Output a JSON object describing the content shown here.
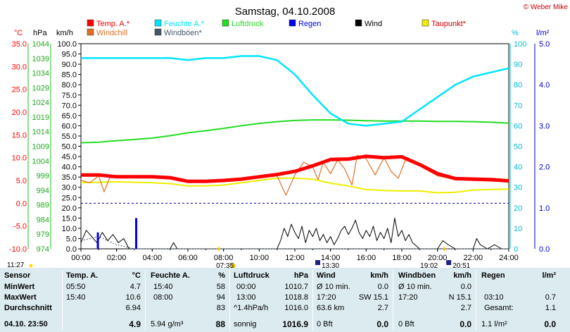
{
  "title": "Samstag, 04.10.2008",
  "copyright": "© Weber Mike",
  "units": {
    "temp": "°C",
    "pressure": "hPa",
    "wind": "km/h",
    "humidity": "%",
    "rain": "l/m²"
  },
  "colors": {
    "temp": "#ff0000",
    "humidity": "#00e5ff",
    "pressure": "#22dd22",
    "rain": "#0000ee",
    "wind": "#000000",
    "dewpoint": "#eeee00",
    "windchill": "#e07020",
    "gusts": "#445566"
  },
  "legend": [
    {
      "label": "Temp. A.*",
      "color": "#ff0000"
    },
    {
      "label": "Feuchte A.*",
      "color": "#00e5ff"
    },
    {
      "label": "Luftdruck",
      "color": "#22dd22"
    },
    {
      "label": "Regen",
      "color": "#0000ee"
    },
    {
      "label": "Wind",
      "color": "#000000"
    },
    {
      "label": "Taupunkt*",
      "color": "#eeee00"
    },
    {
      "label": "Windchill",
      "color": "#e07020"
    },
    {
      "label": "Windböen*",
      "color": "#445566"
    }
  ],
  "sun": {
    "sunrise": "07:35",
    "sunset": "19:02",
    "moonrise": "11:27",
    "moonset_a": "13:30",
    "moonset_b": "20:51"
  },
  "chart_data": {
    "type": "line",
    "x_ticks": [
      "00:00",
      "02:00",
      "04:00",
      "06:00",
      "08:00",
      "10:00",
      "12:00",
      "14:00",
      "16:00",
      "18:00",
      "20:00",
      "22:00",
      "24:00"
    ],
    "axes": {
      "temp_ticks": [
        "35.0",
        "30.0",
        "25.0",
        "20.0",
        "15.0",
        "10.0",
        "5.0",
        "0.0",
        "-5.0",
        "-10.0"
      ],
      "pressure_ticks": [
        "1044",
        "1039",
        "1034",
        "1029",
        "1024",
        "1019",
        "1014",
        "1009",
        "1004",
        "999",
        "994",
        "989",
        "984",
        "979",
        "974"
      ],
      "wind_ticks": [
        "100.0",
        "95.0",
        "90.0",
        "85.0",
        "80.0",
        "75.0",
        "70.0",
        "65.0",
        "60.0",
        "55.0",
        "50.0",
        "45.0",
        "40.0",
        "35.0",
        "30.0",
        "25.0",
        "20.0",
        "15.0",
        "10.0",
        "5.0",
        "0.0"
      ],
      "humidity_ticks": [
        "100",
        "90",
        "80",
        "70",
        "60",
        "50",
        "40",
        "30",
        "20",
        "10",
        "0"
      ],
      "rain_ticks": [
        "5.0",
        "4.0",
        "3.0",
        "2.0",
        "1.0",
        "0.0"
      ],
      "temp_range": [
        -10,
        35
      ],
      "humidity_range": [
        0,
        100
      ],
      "rain_range": [
        0,
        5
      ]
    },
    "series": [
      {
        "name": "Temp. A.*",
        "axis": "temp",
        "points": [
          [
            0,
            6.2
          ],
          [
            1,
            6.2
          ],
          [
            2,
            5.8
          ],
          [
            3,
            5.8
          ],
          [
            4,
            5.8
          ],
          [
            5,
            5.6
          ],
          [
            6,
            4.8
          ],
          [
            7,
            4.8
          ],
          [
            8,
            5.0
          ],
          [
            9,
            5.3
          ],
          [
            10,
            5.8
          ],
          [
            11,
            6.3
          ],
          [
            12,
            7.0
          ],
          [
            13,
            8.2
          ],
          [
            14,
            9.6
          ],
          [
            15,
            9.7
          ],
          [
            16,
            10.3
          ],
          [
            17,
            10.0
          ],
          [
            18,
            10.2
          ],
          [
            19,
            8.5
          ],
          [
            20,
            6.5
          ],
          [
            21,
            5.4
          ],
          [
            22,
            5.3
          ],
          [
            23,
            5.2
          ],
          [
            24,
            4.9
          ]
        ]
      },
      {
        "name": "Feuchte A.*",
        "axis": "humidity",
        "points": [
          [
            0,
            93
          ],
          [
            1,
            93
          ],
          [
            2,
            93
          ],
          [
            3,
            93
          ],
          [
            4,
            93
          ],
          [
            5,
            93
          ],
          [
            6,
            92
          ],
          [
            7,
            93
          ],
          [
            8,
            93
          ],
          [
            9,
            94
          ],
          [
            10,
            94
          ],
          [
            11,
            92
          ],
          [
            12,
            85
          ],
          [
            13,
            75
          ],
          [
            14,
            66
          ],
          [
            15,
            61
          ],
          [
            16,
            60
          ],
          [
            17,
            61
          ],
          [
            18,
            62
          ],
          [
            19,
            68
          ],
          [
            20,
            74
          ],
          [
            21,
            80
          ],
          [
            22,
            84
          ],
          [
            23,
            86
          ],
          [
            24,
            88
          ]
        ]
      },
      {
        "name": "Luftdruck",
        "axis": "pressure",
        "points": [
          [
            0,
            1010.2
          ],
          [
            1,
            1010.4
          ],
          [
            2,
            1010.9
          ],
          [
            3,
            1011.3
          ],
          [
            4,
            1011.8
          ],
          [
            5,
            1012.6
          ],
          [
            6,
            1013.6
          ],
          [
            7,
            1014.3
          ],
          [
            8,
            1015.1
          ],
          [
            9,
            1016.0
          ],
          [
            10,
            1016.8
          ],
          [
            11,
            1017.4
          ],
          [
            12,
            1017.8
          ],
          [
            13,
            1018.0
          ],
          [
            14,
            1018.0
          ],
          [
            15,
            1017.9
          ],
          [
            16,
            1017.7
          ],
          [
            17,
            1017.6
          ],
          [
            18,
            1017.6
          ],
          [
            19,
            1017.6
          ],
          [
            20,
            1017.5
          ],
          [
            21,
            1017.5
          ],
          [
            22,
            1017.4
          ],
          [
            23,
            1017.2
          ],
          [
            24,
            1016.9
          ]
        ]
      },
      {
        "name": "Taupunkt*",
        "axis": "temp",
        "points": [
          [
            0,
            4.5
          ],
          [
            1,
            4.6
          ],
          [
            2,
            4.7
          ],
          [
            3,
            4.6
          ],
          [
            4,
            4.5
          ],
          [
            5,
            4.3
          ],
          [
            6,
            3.8
          ],
          [
            7,
            3.8
          ],
          [
            8,
            4.0
          ],
          [
            9,
            4.5
          ],
          [
            10,
            5.0
          ],
          [
            11,
            5.5
          ],
          [
            12,
            5.5
          ],
          [
            13,
            5.3
          ],
          [
            14,
            4.4
          ],
          [
            15,
            3.8
          ],
          [
            16,
            3.0
          ],
          [
            17,
            2.8
          ],
          [
            18,
            2.7
          ],
          [
            19,
            2.7
          ],
          [
            20,
            2.3
          ],
          [
            21,
            2.4
          ],
          [
            22,
            2.9
          ],
          [
            23,
            3.0
          ],
          [
            24,
            3.1
          ]
        ]
      },
      {
        "name": "Windchill",
        "axis": "temp",
        "points": [
          [
            0,
            5.0
          ],
          [
            0.5,
            4.5
          ],
          [
            1,
            6.0
          ],
          [
            1.3,
            2.5
          ],
          [
            1.6,
            5.5
          ],
          [
            2,
            5.8
          ],
          [
            4,
            5.8
          ],
          [
            6,
            4.8
          ],
          [
            8,
            5.0
          ],
          [
            10,
            5.8
          ],
          [
            11,
            6.0
          ],
          [
            11.5,
            1.8
          ],
          [
            12,
            6.2
          ],
          [
            12.5,
            9.0
          ],
          [
            13,
            8.0
          ],
          [
            13.3,
            5.2
          ],
          [
            13.6,
            9.0
          ],
          [
            14,
            6.5
          ],
          [
            14.4,
            9.5
          ],
          [
            14.8,
            7.5
          ],
          [
            15.2,
            4.0
          ],
          [
            15.5,
            10.5
          ],
          [
            16,
            9.8
          ],
          [
            16.5,
            6.2
          ],
          [
            17,
            10.0
          ],
          [
            17.4,
            7.0
          ],
          [
            17.8,
            5.5
          ],
          [
            18.2,
            9.5
          ],
          [
            19,
            8.2
          ],
          [
            20,
            6.0
          ],
          [
            21,
            5.2
          ],
          [
            22,
            5.0
          ],
          [
            24,
            4.7
          ]
        ]
      },
      {
        "name": "Wind",
        "axis": "wind",
        "points": [
          [
            0,
            3
          ],
          [
            0.3,
            9
          ],
          [
            0.6,
            6
          ],
          [
            0.9,
            3
          ],
          [
            1.2,
            8
          ],
          [
            1.5,
            4
          ],
          [
            1.8,
            7
          ],
          [
            2.1,
            3
          ],
          [
            2.4,
            5
          ],
          [
            2.7,
            0
          ],
          [
            5,
            0
          ],
          [
            5.2,
            3
          ],
          [
            5.4,
            0
          ],
          [
            11,
            0
          ],
          [
            11.2,
            4
          ],
          [
            11.4,
            10
          ],
          [
            11.6,
            6
          ],
          [
            11.8,
            12
          ],
          [
            12,
            8
          ],
          [
            12.2,
            5
          ],
          [
            12.4,
            11
          ],
          [
            12.6,
            3
          ],
          [
            12.8,
            9
          ],
          [
            13,
            6
          ],
          [
            13.2,
            10
          ],
          [
            13.4,
            4
          ],
          [
            13.6,
            7
          ],
          [
            13.8,
            3
          ],
          [
            14,
            6
          ],
          [
            14.2,
            2
          ],
          [
            14.4,
            5
          ],
          [
            14.6,
            9
          ],
          [
            14.8,
            11
          ],
          [
            15,
            7
          ],
          [
            15.2,
            10
          ],
          [
            15.4,
            14
          ],
          [
            15.6,
            8
          ],
          [
            15.8,
            5
          ],
          [
            16,
            9
          ],
          [
            16.2,
            6
          ],
          [
            16.4,
            11
          ],
          [
            16.6,
            4
          ],
          [
            16.8,
            8
          ],
          [
            17,
            5
          ],
          [
            17.2,
            10
          ],
          [
            17.4,
            3
          ],
          [
            17.6,
            15
          ],
          [
            17.8,
            6
          ],
          [
            18,
            9
          ],
          [
            18.2,
            4
          ],
          [
            18.4,
            7
          ],
          [
            18.6,
            3
          ],
          [
            19,
            0
          ],
          [
            20,
            0
          ],
          [
            20.3,
            4
          ],
          [
            20.6,
            2
          ],
          [
            21,
            0
          ],
          [
            22,
            0
          ],
          [
            22.2,
            5
          ],
          [
            22.4,
            2
          ],
          [
            22.8,
            0
          ],
          [
            23.2,
            2
          ],
          [
            23.6,
            0
          ],
          [
            24,
            0
          ]
        ]
      },
      {
        "name": "Windböen*",
        "axis": "wind",
        "points": [
          [
            0,
            4
          ],
          [
            1,
            6
          ],
          [
            2,
            2
          ],
          [
            3,
            0
          ],
          [
            24,
            0
          ]
        ]
      },
      {
        "name": "Regen",
        "axis": "wind",
        "type": "bar",
        "points": [
          [
            0.95,
            8
          ],
          [
            3.1,
            15
          ]
        ]
      }
    ],
    "reference_lines": [
      {
        "axis": "temp",
        "value": 0.0,
        "style": "dashed"
      }
    ]
  },
  "stats": {
    "header": {
      "sensor": "Sensor",
      "temp": "Temp. A.",
      "temp_unit": "°C",
      "hum": "Feuchte A.",
      "hum_unit": "%",
      "press": "Luftdruck",
      "press_unit": "hPa",
      "wind": "Wind",
      "wind_unit": "km/h",
      "gust": "Windböen",
      "gust_unit": "km/h",
      "rain": "Regen",
      "rain_unit": "l/m²"
    },
    "rows": [
      {
        "label": "MinWert",
        "t_time": "05:50",
        "t_val": "4.7",
        "h_time": "15:40",
        "h_val": "58",
        "p_time": "00:00",
        "p_val": "1010.7",
        "w_lbl": "Ø 10 min.",
        "w_val": "0.0",
        "g_lbl": "Ø 10 min.",
        "g_val": "0.0",
        "r_lbl": "",
        "r_val": ""
      },
      {
        "label": "MaxWert",
        "t_time": "15:40",
        "t_val": "10.6",
        "h_time": "08:00",
        "h_val": "94",
        "p_time": "13:00",
        "p_val": "1018.8",
        "w_lbl": "17:20",
        "w_dir": "SW 15.1",
        "w_val": "",
        "g_lbl": "17:20",
        "g_dir": "N 15.1",
        "g_val": "",
        "r_lbl": "03:10",
        "r_val": "0.7"
      },
      {
        "label": "Durchschnitt",
        "t_time": "",
        "t_val": "6.94",
        "h_time": "",
        "h_val": "83",
        "p_time": "^1.4hPa/h",
        "p_val": "1016.0",
        "w_lbl": "63.6 km",
        "w_val": "2.7",
        "g_lbl": "",
        "g_val": "2.7",
        "r_lbl": "Gesamt:",
        "r_val": "1.1"
      },
      {
        "label": "04.10. 23:50",
        "t_time": "",
        "t_val": "4.9",
        "h_time": "5.94 g/m³",
        "h_val": "88",
        "p_time": "sonnig",
        "p_val": "1016.9",
        "w_lbl": "0 Bft",
        "w_val": "0.0",
        "g_lbl": "0 Bft",
        "g_val": "0.0",
        "r_lbl": "1.1 l/m²",
        "r_val": "0.0"
      }
    ]
  }
}
